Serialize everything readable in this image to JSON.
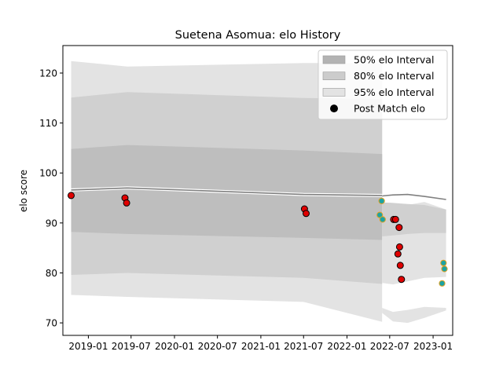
{
  "chart_data": {
    "type": "scatter",
    "title": "Suetena Asomua: elo History",
    "xlabel": "",
    "ylabel": "elo score",
    "xlim": [
      "2018-09-15",
      "2023-03-25"
    ],
    "ylim": [
      67.5,
      125.5
    ],
    "x_ticks": [
      "2019-01",
      "2019-07",
      "2020-01",
      "2020-07",
      "2021-01",
      "2021-07",
      "2022-01",
      "2022-07",
      "2023-01"
    ],
    "y_ticks": [
      70,
      80,
      90,
      100,
      110,
      120
    ],
    "legend_position": "upper right",
    "legend": [
      {
        "label": "50% elo Interval",
        "kind": "band",
        "color": "#b3b3b3"
      },
      {
        "label": "80% elo Interval",
        "kind": "band",
        "color": "#cccccc"
      },
      {
        "label": "95% elo Interval",
        "kind": "band",
        "color": "#e3e3e3"
      },
      {
        "label": "Post Match elo",
        "kind": "marker",
        "color": "#000000"
      }
    ],
    "colors": {
      "band_50": "#bebebe",
      "band_80": "#d0d0d0",
      "band_95": "#e3e3e3",
      "mean_line": "#808080",
      "marker_fill": "#e00000",
      "marker_edge": "#000000",
      "alt_marker_fill": "#1ba3a3",
      "alt_marker_edge": "#e0a020"
    },
    "bands": [
      {
        "x": [
          "2018-10-20",
          "2019-06-15",
          "2021-07-01",
          "2022-05-30"
        ],
        "mean": [
          96.6,
          97.0,
          95.7,
          95.5
        ],
        "p50": [
          [
            88.2,
            104.8
          ],
          [
            87.8,
            105.6
          ],
          [
            87.0,
            104.5
          ],
          [
            86.6,
            103.8
          ]
        ],
        "p80": [
          [
            79.6,
            115.1
          ],
          [
            80.0,
            116.2
          ],
          [
            79.0,
            115.0
          ],
          [
            77.8,
            114.8
          ]
        ],
        "p95": [
          [
            75.6,
            122.4
          ],
          [
            75.2,
            121.3
          ],
          [
            74.2,
            122.0
          ],
          [
            70.2,
            122.0
          ]
        ]
      },
      {
        "x": [
          "2022-05-30",
          "2022-07-15",
          "2022-09-15",
          "2022-11-25",
          "2023-02-25"
        ],
        "mean": [
          95.4,
          95.6,
          95.7,
          95.3,
          94.7
        ],
        "p50": [
          [
            95.4,
            95.4
          ],
          [
            95.5,
            95.8
          ],
          [
            95.6,
            95.9
          ],
          [
            95.3,
            95.4
          ],
          [
            94.7,
            94.8
          ]
        ],
        "p80": [
          [
            87.3,
            94.1
          ],
          [
            87.5,
            94.0
          ],
          [
            87.8,
            93.8
          ],
          [
            88.0,
            93.6
          ],
          [
            88.0,
            92.7
          ]
        ],
        "p95": [
          [
            78.0,
            94.1
          ],
          [
            77.7,
            94.0
          ],
          [
            78.3,
            93.6
          ],
          [
            79.0,
            94.2
          ],
          [
            79.2,
            92.7
          ]
        ],
        "p95_low": [
          [
            72.0,
            73.0
          ],
          [
            70.3,
            72.2
          ],
          [
            70.0,
            72.6
          ],
          [
            71.0,
            73.2
          ],
          [
            72.5,
            73.0
          ]
        ]
      }
    ],
    "points": [
      {
        "x": "2018-10-20",
        "y": 95.5,
        "style": "red"
      },
      {
        "x": "2019-06-05",
        "y": 95.0,
        "style": "red"
      },
      {
        "x": "2019-06-12",
        "y": 94.0,
        "style": "red"
      },
      {
        "x": "2021-07-05",
        "y": 92.8,
        "style": "red"
      },
      {
        "x": "2021-07-12",
        "y": 91.9,
        "style": "red"
      },
      {
        "x": "2022-05-20",
        "y": 91.6,
        "style": "teal"
      },
      {
        "x": "2022-05-28",
        "y": 94.4,
        "style": "teal"
      },
      {
        "x": "2022-06-01",
        "y": 90.7,
        "style": "teal"
      },
      {
        "x": "2022-07-18",
        "y": 90.7,
        "style": "red"
      },
      {
        "x": "2022-07-26",
        "y": 90.7,
        "style": "red"
      },
      {
        "x": "2022-08-10",
        "y": 89.1,
        "style": "red"
      },
      {
        "x": "2022-08-05",
        "y": 83.8,
        "style": "red"
      },
      {
        "x": "2022-08-12",
        "y": 85.2,
        "style": "red"
      },
      {
        "x": "2022-08-15",
        "y": 81.5,
        "style": "red"
      },
      {
        "x": "2022-08-20",
        "y": 78.7,
        "style": "red"
      },
      {
        "x": "2023-02-08",
        "y": 77.9,
        "style": "teal"
      },
      {
        "x": "2023-02-14",
        "y": 82.0,
        "style": "teal"
      },
      {
        "x": "2023-02-18",
        "y": 80.8,
        "style": "teal"
      }
    ]
  }
}
